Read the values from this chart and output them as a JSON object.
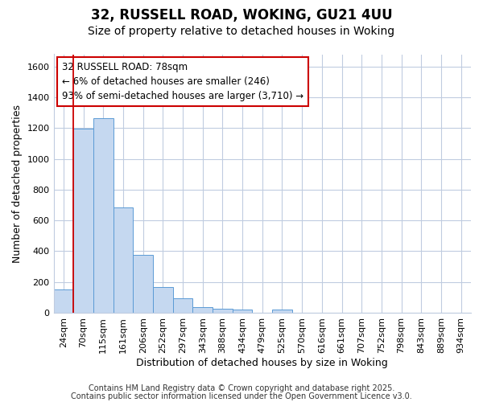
{
  "title1": "32, RUSSELL ROAD, WOKING, GU21 4UU",
  "title2": "Size of property relative to detached houses in Woking",
  "xlabel": "Distribution of detached houses by size in Woking",
  "ylabel": "Number of detached properties",
  "categories": [
    "24sqm",
    "70sqm",
    "115sqm",
    "161sqm",
    "206sqm",
    "252sqm",
    "297sqm",
    "343sqm",
    "388sqm",
    "434sqm",
    "479sqm",
    "525sqm",
    "570sqm",
    "616sqm",
    "661sqm",
    "707sqm",
    "752sqm",
    "798sqm",
    "843sqm",
    "889sqm",
    "934sqm"
  ],
  "values": [
    150,
    1195,
    1265,
    685,
    375,
    165,
    95,
    35,
    25,
    20,
    0,
    20,
    0,
    0,
    0,
    0,
    0,
    0,
    0,
    0,
    0
  ],
  "bar_color": "#c5d8f0",
  "bar_edge_color": "#5b9bd5",
  "bar_linewidth": 0.7,
  "vline_color": "#cc0000",
  "vline_x": 0.5,
  "annotation_text": "32 RUSSELL ROAD: 78sqm\n← 6% of detached houses are smaller (246)\n93% of semi-detached houses are larger (3,710) →",
  "annotation_box_color": "#ffffff",
  "annotation_box_edge": "#cc0000",
  "ylim": [
    0,
    1680
  ],
  "yticks": [
    0,
    200,
    400,
    600,
    800,
    1000,
    1200,
    1400,
    1600
  ],
  "background_color": "#ffffff",
  "grid_color": "#c0cce0",
  "footer1": "Contains HM Land Registry data © Crown copyright and database right 2025.",
  "footer2": "Contains public sector information licensed under the Open Government Licence v3.0.",
  "title_fontsize": 12,
  "subtitle_fontsize": 10,
  "axis_label_fontsize": 9,
  "tick_fontsize": 8,
  "annotation_fontsize": 8.5,
  "footer_fontsize": 7
}
